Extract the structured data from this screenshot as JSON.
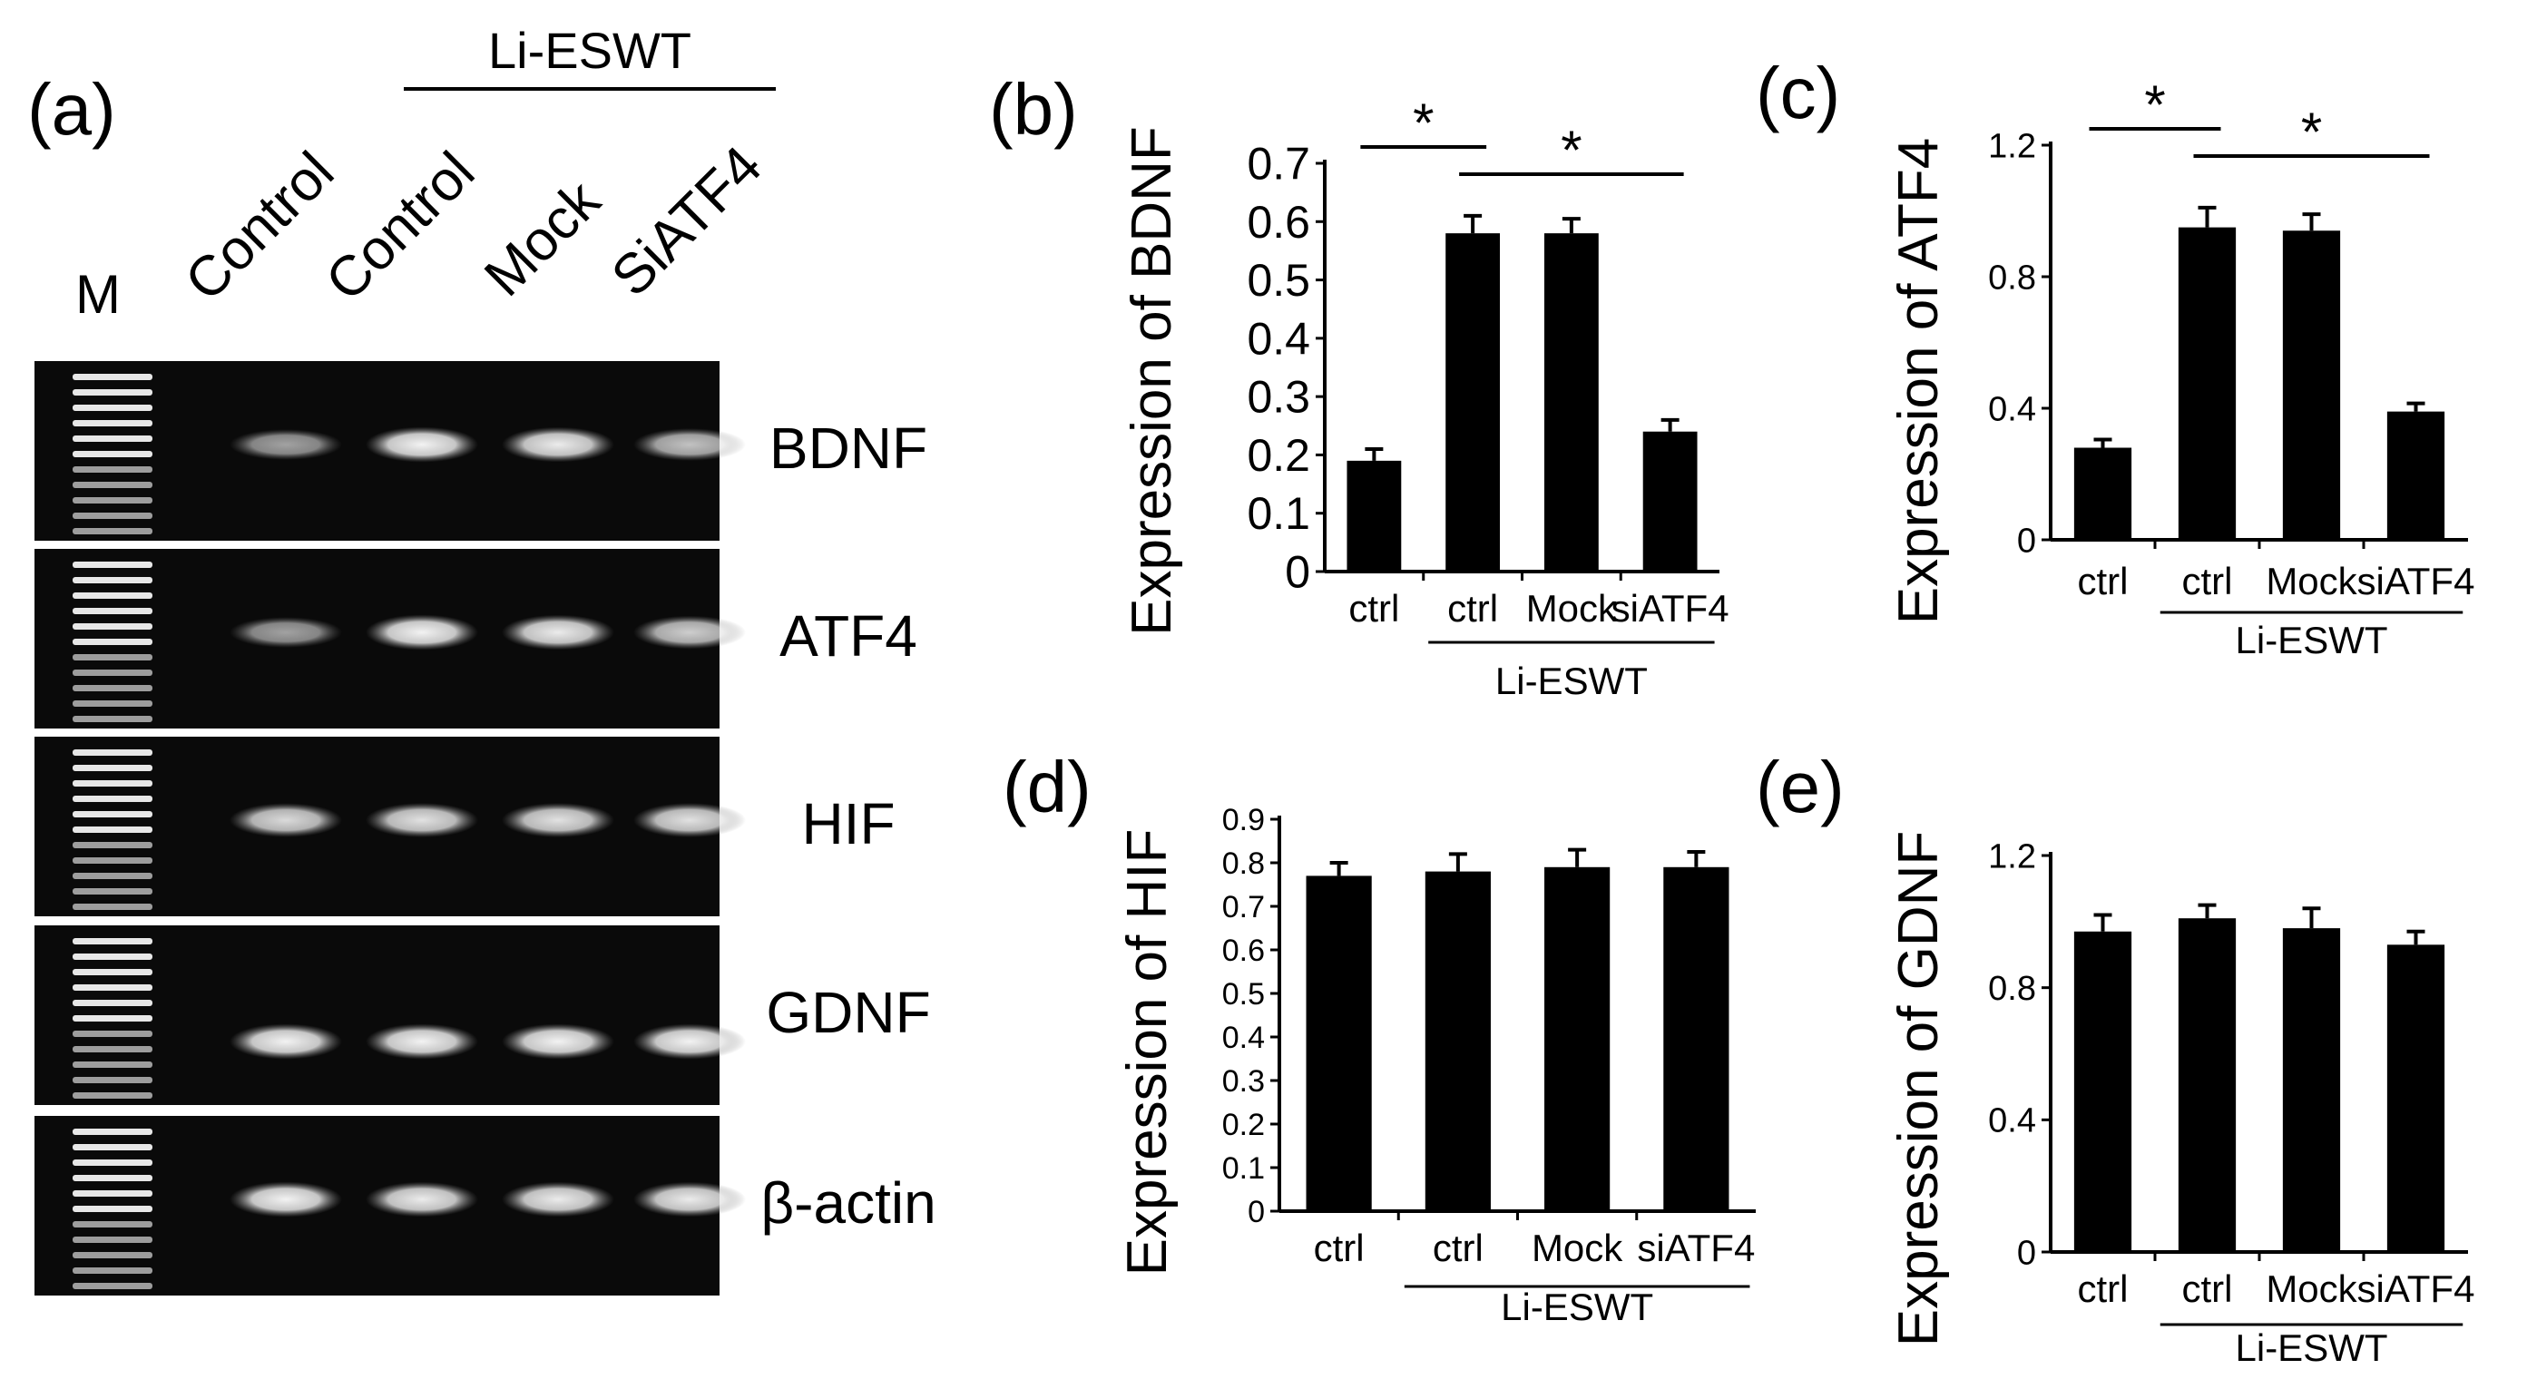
{
  "panel_a": {
    "label": "(a)",
    "marker_label": "M",
    "group_label": "Li-ESWT",
    "lanes": [
      "Control",
      "Control",
      "Mock",
      "SiATF4"
    ],
    "genes": [
      "BDNF",
      "ATF4",
      "HIF",
      "GDNF",
      "β-actin"
    ],
    "band_intensity": [
      [
        0.62,
        0.95,
        0.92,
        0.75
      ],
      [
        0.62,
        0.95,
        0.92,
        0.8
      ],
      [
        0.85,
        0.88,
        0.88,
        0.88
      ],
      [
        0.95,
        0.95,
        0.95,
        0.95
      ],
      [
        0.95,
        0.92,
        0.92,
        0.92
      ]
    ]
  },
  "chart_data": [
    {
      "panel": "(b)",
      "type": "bar",
      "ylabel": "Expression of BDNF",
      "categories": [
        "ctrl",
        "ctrl",
        "Mock",
        "siATF4"
      ],
      "group_label": "Li-ESWT",
      "values": [
        0.19,
        0.58,
        0.58,
        0.24
      ],
      "errors": [
        0.02,
        0.03,
        0.025,
        0.02
      ],
      "ylim": [
        0,
        0.7
      ],
      "yticks": [
        "0",
        "0.1",
        "0.2",
        "0.3",
        "0.4",
        "0.5",
        "0.6",
        "0.7"
      ],
      "significance": [
        {
          "from": 0,
          "to": 1,
          "label": "*"
        },
        {
          "from": 1,
          "to": 3,
          "label": "*"
        }
      ]
    },
    {
      "panel": "(c)",
      "type": "bar",
      "ylabel": "Expression of ATF4",
      "categories": [
        "ctrl",
        "ctrl",
        "Mock",
        "siATF4"
      ],
      "group_label": "Li-ESWT",
      "values": [
        0.28,
        0.95,
        0.94,
        0.39
      ],
      "errors": [
        0.025,
        0.06,
        0.05,
        0.025
      ],
      "ylim": [
        0,
        1.2
      ],
      "yticks": [
        "0",
        "0.4",
        "0.8",
        "1.2"
      ],
      "significance": [
        {
          "from": 0,
          "to": 1,
          "label": "*"
        },
        {
          "from": 1,
          "to": 3,
          "label": "*"
        }
      ]
    },
    {
      "panel": "(d)",
      "type": "bar",
      "ylabel": "Expression of HIF",
      "categories": [
        "ctrl",
        "ctrl",
        "Mock",
        "siATF4"
      ],
      "group_label": "Li-ESWT",
      "values": [
        0.77,
        0.78,
        0.79,
        0.79
      ],
      "errors": [
        0.03,
        0.04,
        0.04,
        0.035
      ],
      "ylim": [
        0,
        0.9
      ],
      "yticks": [
        "0",
        "0.1",
        "0.2",
        "0.3",
        "0.4",
        "0.5",
        "0.6",
        "0.7",
        "0.8",
        "0.9"
      ],
      "significance": []
    },
    {
      "panel": "(e)",
      "type": "bar",
      "ylabel": "Expression of GDNF",
      "categories": [
        "ctrl",
        "ctrl",
        "Mock",
        "siATF4"
      ],
      "group_label": "Li-ESWT",
      "values": [
        0.97,
        1.01,
        0.98,
        0.93
      ],
      "errors": [
        0.05,
        0.04,
        0.06,
        0.04
      ],
      "ylim": [
        0,
        1.2
      ],
      "yticks": [
        "0",
        "0.4",
        "0.8",
        "1.2"
      ],
      "significance": []
    }
  ]
}
